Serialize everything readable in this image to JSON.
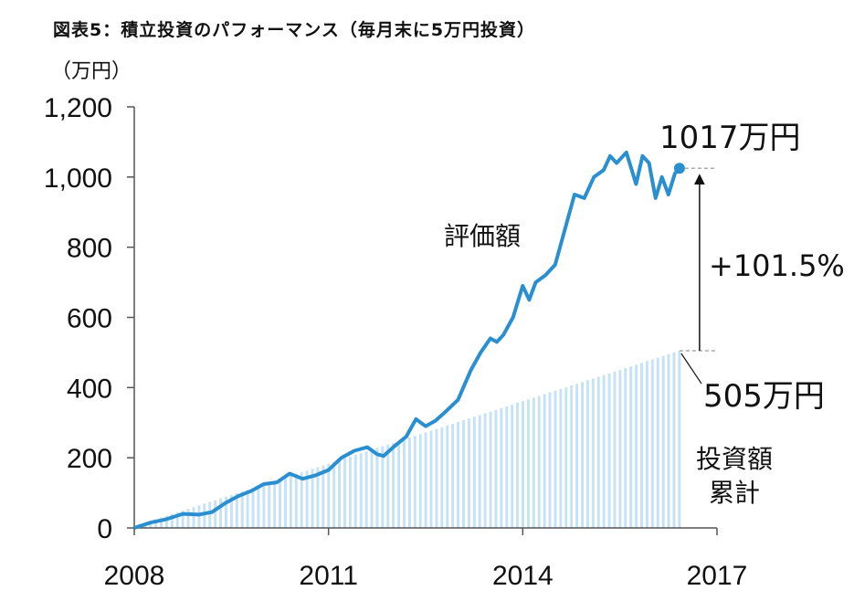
{
  "title": "図表5：積立投資のパフォーマンス（毎月末に5万円投資）",
  "unit_label": "（万円）",
  "chart_data": {
    "type": "area",
    "x_ticks": [
      "2008",
      "2011",
      "2014",
      "2017"
    ],
    "y_ticks": [
      "0",
      "200",
      "400",
      "600",
      "800",
      "1,000",
      "1,200"
    ],
    "ylim": [
      0,
      1200
    ],
    "xlim": [
      2008.0,
      2017.0
    ],
    "labels": {
      "valuation": "評価額",
      "cumulative_line1": "投資額",
      "cumulative_line2": "累計"
    },
    "annotations": {
      "final_value": "1017万円",
      "final_invested": "505万円",
      "return": "+101.5%"
    },
    "colors": {
      "valuation_line": "#2a8fd0",
      "invested_bars": "#c6e2f5",
      "annotation_dash": "#aaaaaa"
    },
    "invested": {
      "start": 2008.0,
      "end": 2016.42,
      "start_value": 5,
      "end_value": 505
    },
    "valuation": {
      "x": [
        2008.0,
        2008.25,
        2008.5,
        2008.75,
        2009.0,
        2009.2,
        2009.4,
        2009.6,
        2009.8,
        2010.0,
        2010.2,
        2010.4,
        2010.6,
        2010.8,
        2011.0,
        2011.2,
        2011.4,
        2011.6,
        2011.75,
        2011.85,
        2012.0,
        2012.2,
        2012.35,
        2012.5,
        2012.65,
        2012.8,
        2013.0,
        2013.2,
        2013.35,
        2013.5,
        2013.6,
        2013.7,
        2013.85,
        2014.0,
        2014.1,
        2014.2,
        2014.35,
        2014.5,
        2014.65,
        2014.8,
        2014.95,
        2015.1,
        2015.25,
        2015.35,
        2015.45,
        2015.6,
        2015.75,
        2015.85,
        2015.95,
        2016.05,
        2016.15,
        2016.25,
        2016.35,
        2016.42
      ],
      "y": [
        0,
        15,
        25,
        40,
        38,
        45,
        70,
        90,
        105,
        125,
        130,
        155,
        140,
        150,
        165,
        200,
        220,
        230,
        210,
        205,
        230,
        260,
        310,
        290,
        305,
        330,
        365,
        450,
        500,
        540,
        530,
        550,
        600,
        690,
        650,
        700,
        720,
        750,
        850,
        950,
        940,
        1000,
        1020,
        1060,
        1040,
        1070,
        980,
        1060,
        1040,
        940,
        1000,
        950,
        1010,
        1025
      ]
    }
  }
}
